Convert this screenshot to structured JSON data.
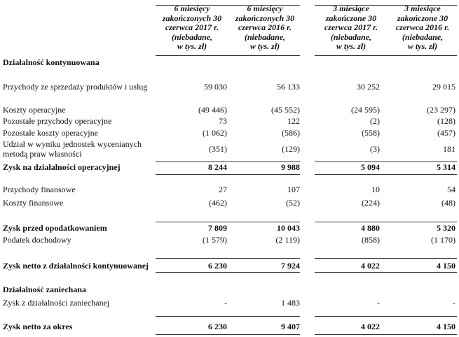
{
  "columns": [
    {
      "line1": "6 miesięcy",
      "line2": "zakończonych 30",
      "line3": "czerwca 2017 r.",
      "line4": "(niebadane,",
      "line5": "w tys. zł)"
    },
    {
      "line1": "6 miesięcy",
      "line2": "zakończonych 30",
      "line3": "czerwca 2016 r.",
      "line4": "(niebadane,",
      "line5": "w tys. zł)"
    },
    {
      "line1": "3 miesiące",
      "line2": "zakończone 30",
      "line3": "czerwca 2017 r.",
      "line4": "(niebadane,",
      "line5": "w tys. zł)"
    },
    {
      "line1": "3 miesiące",
      "line2": "zakończone 30",
      "line3": "czerwca 2016 r.",
      "line4": "(niebadane,",
      "line5": "w tys. zł)"
    }
  ],
  "rows": [
    {
      "label": "Działalność kontynuowana",
      "bold": true,
      "values": [
        "",
        "",
        "",
        ""
      ]
    },
    {
      "label": "Przychody ze sprzedaży produktów i usług",
      "values": [
        "59 030",
        "56 133",
        "30 252",
        "29 015"
      ]
    },
    {
      "label": "Koszty operacyjne",
      "values": [
        "(49 446)",
        "(45 552)",
        "(24 595)",
        "(23 297)"
      ]
    },
    {
      "label": "Pozostałe przychody operacyjne",
      "values": [
        "73",
        "122",
        "(2)",
        "(128)"
      ]
    },
    {
      "label": "Pozostałe koszty operacyjne",
      "values": [
        "(1 062)",
        "(586)",
        "(558)",
        "(457)"
      ]
    },
    {
      "label": "Udział w wyniku jednostek wycenianych",
      "label2": "metodą praw własności",
      "values": [
        "(351)",
        "(129)",
        "(3)",
        "181"
      ]
    },
    {
      "label": "Zysk na działalności operacyjnej",
      "bold": true,
      "values": [
        "8 244",
        "9 988",
        "5 094",
        "5 314"
      ]
    },
    {
      "label": "Przychody finansowe",
      "values": [
        "27",
        "107",
        "10",
        "54"
      ]
    },
    {
      "label": "Koszty finansowe",
      "values": [
        "(462)",
        "(52)",
        "(224)",
        "(48)"
      ]
    },
    {
      "label": "Zysk przed opodatkowaniem",
      "bold": true,
      "values": [
        "7 809",
        "10 043",
        "4 880",
        "5 320"
      ]
    },
    {
      "label": "Podatek dochodowy",
      "values": [
        "(1 579)",
        "(2 119)",
        "(858)",
        "(1 170)"
      ]
    },
    {
      "label": "Zysk netto z działalności kontynuowanej",
      "bold": true,
      "values": [
        "6 230",
        "7 924",
        "4 022",
        "4 150"
      ]
    },
    {
      "label": "Działalność zaniechana",
      "bold": true,
      "values": [
        "",
        "",
        "",
        ""
      ]
    },
    {
      "label": "Zysk z działalności zaniechanej",
      "values": [
        "-",
        "1 483",
        "-",
        "-"
      ]
    },
    {
      "label": "Zysk netto za okres",
      "bold": true,
      "values": [
        "6 230",
        "9 407",
        "4 022",
        "4 150"
      ]
    }
  ]
}
